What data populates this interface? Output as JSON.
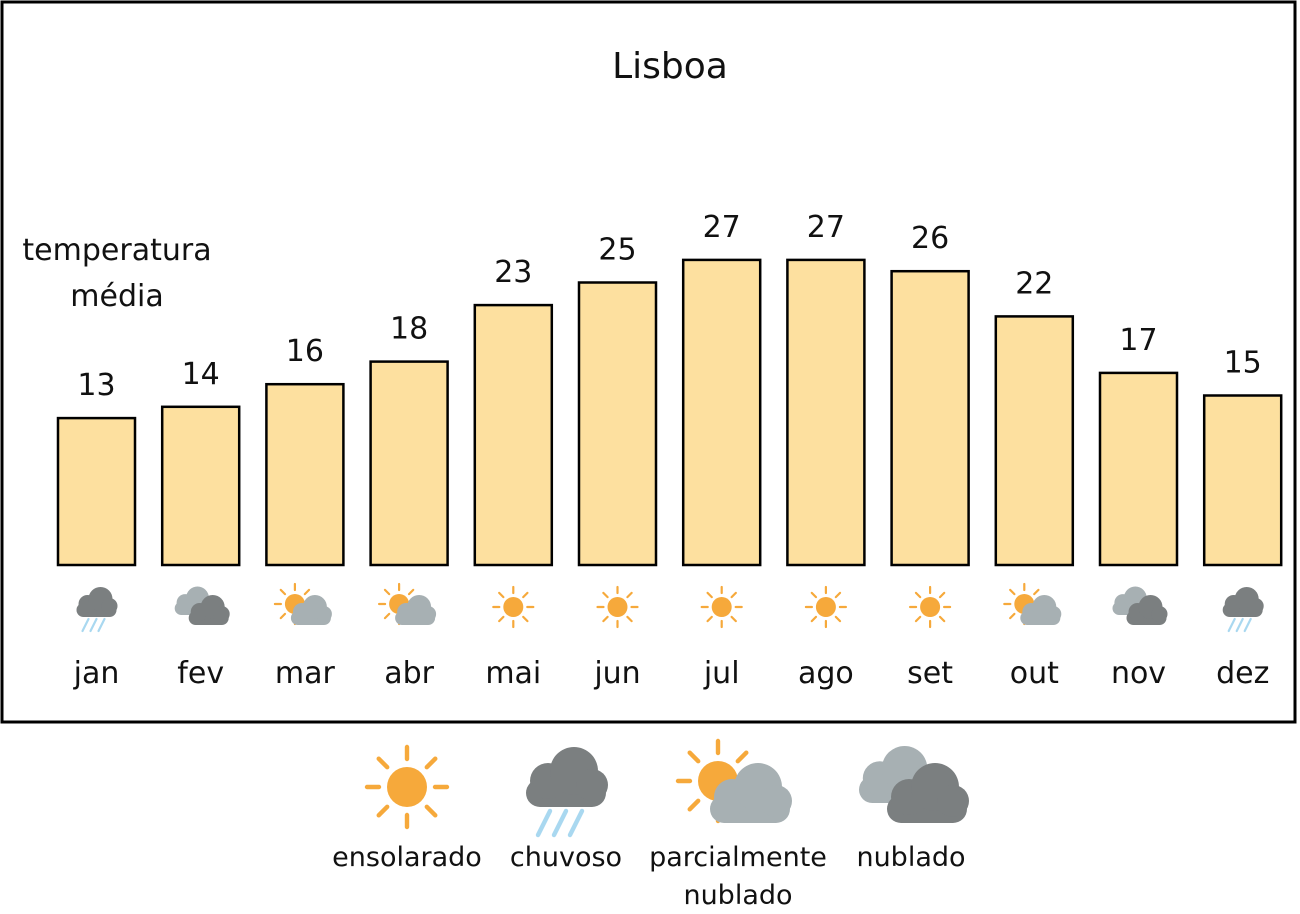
{
  "chart_data": {
    "type": "bar",
    "title": "Lisboa",
    "ylabel_line1": "temperatura",
    "ylabel_line2": "média",
    "categories": [
      "jan",
      "fev",
      "mar",
      "abr",
      "mai",
      "jun",
      "jul",
      "ago",
      "set",
      "out",
      "nov",
      "dez"
    ],
    "values": [
      13,
      14,
      16,
      18,
      23,
      25,
      27,
      27,
      26,
      22,
      17,
      15
    ],
    "weather": [
      "rain",
      "cloudy",
      "partly",
      "partly",
      "sunny",
      "sunny",
      "sunny",
      "sunny",
      "sunny",
      "partly",
      "cloudy",
      "rain"
    ],
    "bar_color": "#fde09f"
  },
  "legend": [
    {
      "key": "sunny",
      "lines": [
        "ensolarado"
      ]
    },
    {
      "key": "rain",
      "lines": [
        "chuvoso"
      ]
    },
    {
      "key": "partly",
      "lines": [
        "parcialmente",
        "nublado"
      ]
    },
    {
      "key": "cloudy",
      "lines": [
        "nublado"
      ]
    }
  ],
  "colors": {
    "sun": "#f6a93b",
    "cloud_dark": "#7b7f80",
    "cloud_light": "#a7b0b3",
    "rain": "#a9d8f0"
  }
}
